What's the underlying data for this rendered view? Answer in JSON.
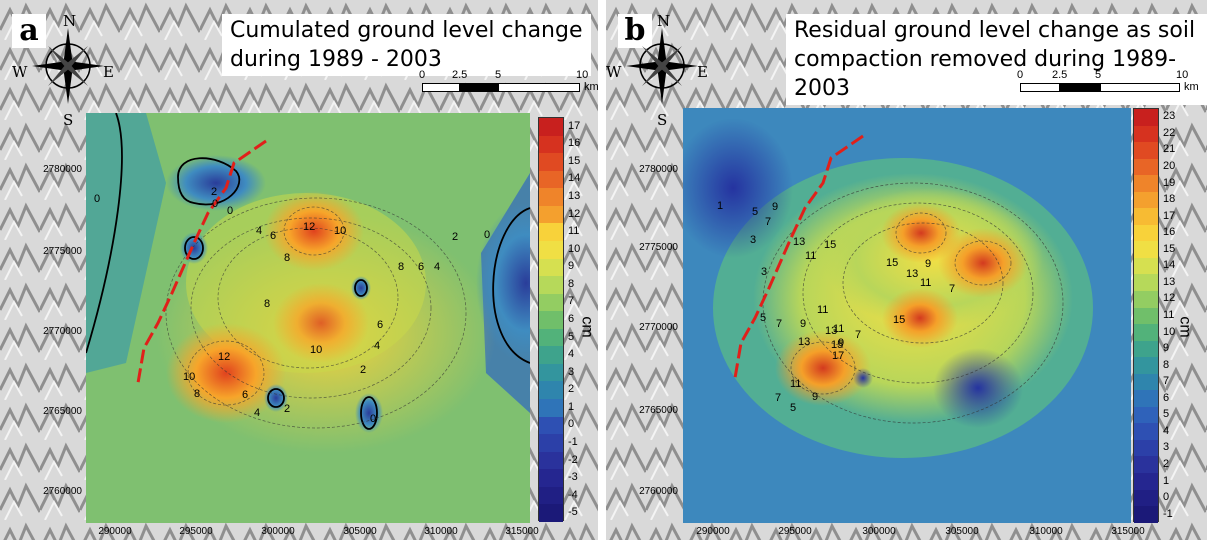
{
  "compass": {
    "n": "N",
    "s": "S",
    "e": "E",
    "w": "W"
  },
  "panels": [
    {
      "tag": "a",
      "title": "Cumulated ground level change\nduring 1989 - 2003",
      "scale": {
        "labels": [
          "0",
          "2.5",
          "5",
          "10"
        ],
        "unit": "km"
      },
      "unit_label": "cm",
      "colorbar_ticks": [
        "17",
        "16",
        "15",
        "14",
        "13",
        "12",
        "11",
        "10",
        "9",
        "8",
        "7",
        "6",
        "5",
        "4",
        "3",
        "2",
        "1",
        "0",
        "-1",
        "-2",
        "-3",
        "-4",
        "-5"
      ],
      "y_ticks": [
        "2780000",
        "2775000",
        "2770000",
        "2765000",
        "2760000"
      ],
      "x_ticks": [
        "290000",
        "295000",
        "300000",
        "305000",
        "310000",
        "315000"
      ],
      "contour_labels": [
        "0",
        "0",
        "2",
        "0",
        "4",
        "6",
        "8",
        "12",
        "10",
        "8",
        "6",
        "4",
        "2",
        "8",
        "6",
        "10",
        "12",
        "10",
        "8",
        "6",
        "4",
        "2",
        "0",
        "4",
        "2",
        "0"
      ]
    },
    {
      "tag": "b",
      "title": "Residual ground level change as soil\ncompaction removed during 1989-2003",
      "scale": {
        "labels": [
          "0",
          "2.5",
          "5",
          "10"
        ],
        "unit": "km"
      },
      "unit_label": "cm",
      "colorbar_ticks": [
        "23",
        "22",
        "21",
        "20",
        "19",
        "18",
        "17",
        "16",
        "15",
        "14",
        "13",
        "12",
        "11",
        "10",
        "9",
        "8",
        "7",
        "6",
        "5",
        "4",
        "3",
        "2",
        "1",
        "0",
        "-1"
      ],
      "y_ticks": [
        "2780000",
        "2775000",
        "2770000",
        "2765000",
        "2760000"
      ],
      "x_ticks": [
        "290000",
        "295000",
        "300000",
        "305000",
        "310000",
        "315000"
      ],
      "contour_labels": [
        "1",
        "3",
        "5",
        "7",
        "9",
        "13",
        "11",
        "15",
        "15",
        "13",
        "11",
        "9",
        "7",
        "3",
        "5",
        "7",
        "9",
        "11",
        "13",
        "15",
        "17",
        "13",
        "11",
        "9",
        "11",
        "9",
        "7",
        "5",
        "7",
        "15"
      ]
    }
  ],
  "colors": {
    "low": "#1f2a8c",
    "mid": "#ffe24a",
    "high": "#c8201e",
    "fault": "#e0201a"
  }
}
